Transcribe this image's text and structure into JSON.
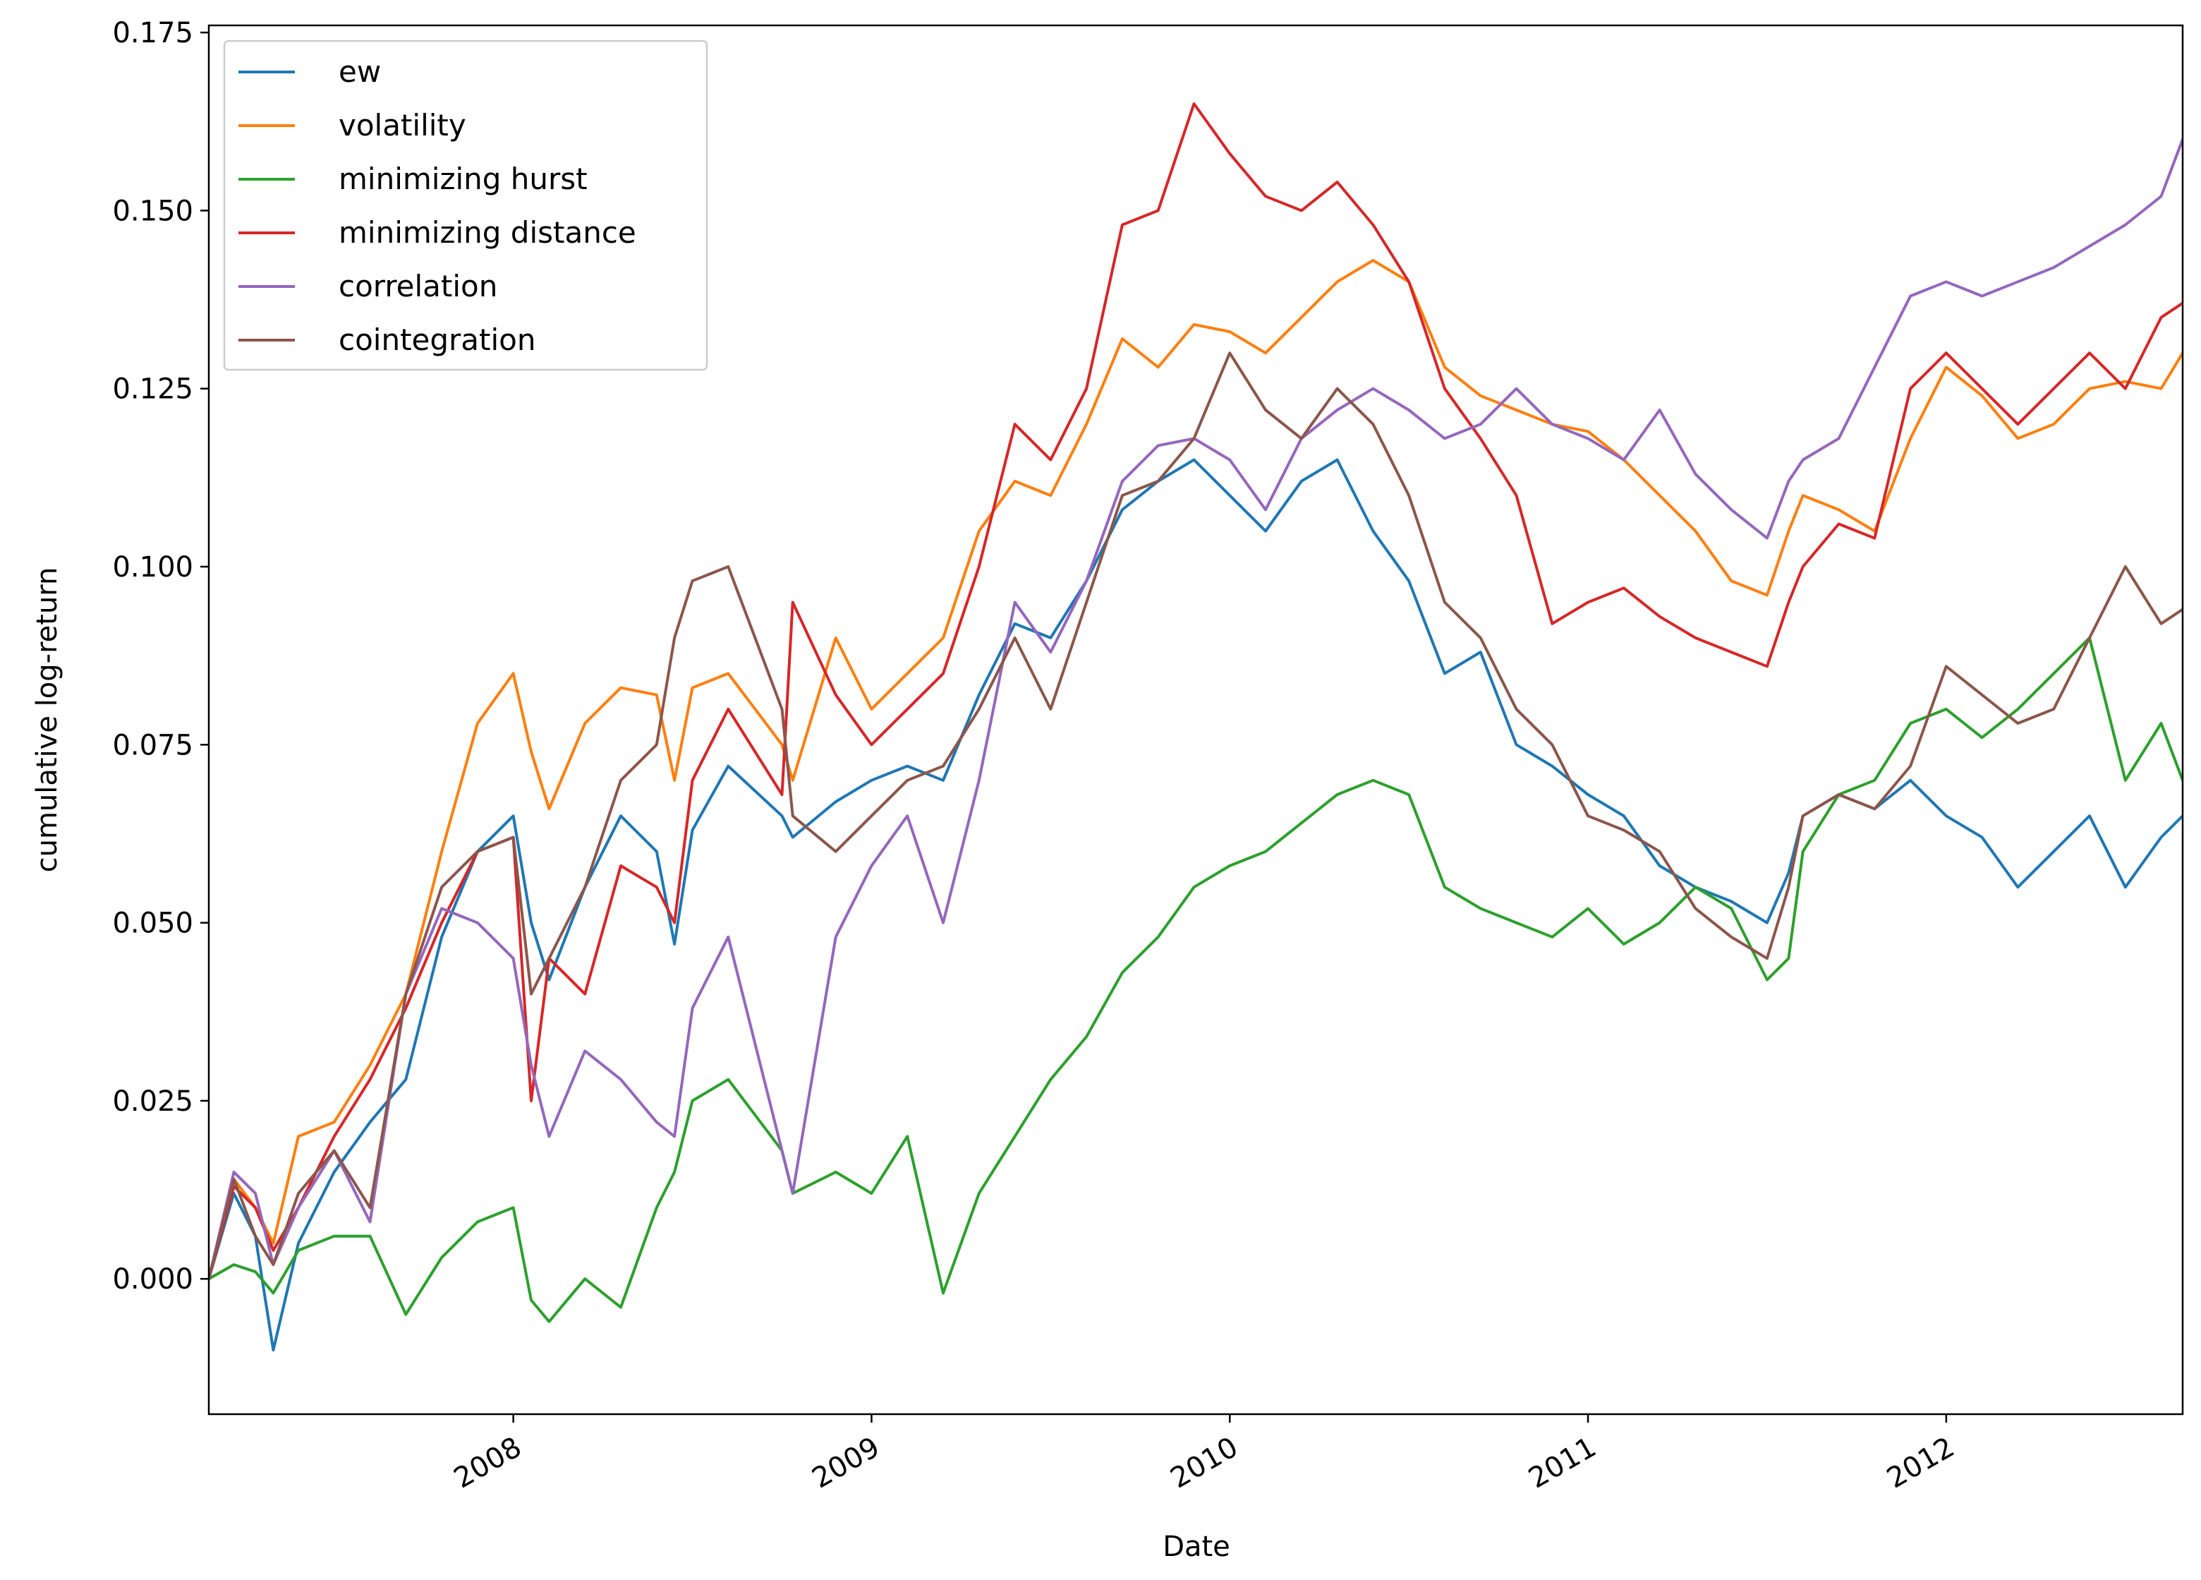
{
  "chart_data": {
    "type": "line",
    "title": "",
    "xlabel": "Date",
    "ylabel": "cumulative log-return",
    "xlim": [
      2007.15,
      2012.66
    ],
    "ylim": [
      -0.019,
      0.176
    ],
    "grid": false,
    "legend_position": "upper-left",
    "x_ticks": [
      2008,
      2009,
      2010,
      2011,
      2012
    ],
    "x_tick_labels": [
      "2008",
      "2009",
      "2010",
      "2011",
      "2012"
    ],
    "y_ticks": [
      0.0,
      0.025,
      0.05,
      0.075,
      0.1,
      0.125,
      0.15,
      0.175
    ],
    "y_tick_labels": [
      "0.000",
      "0.025",
      "0.050",
      "0.075",
      "0.100",
      "0.125",
      "0.150",
      "0.175"
    ],
    "series": [
      {
        "name": "ew",
        "color": "#1f77b4",
        "x": [
          2007.15,
          2007.22,
          2007.28,
          2007.33,
          2007.4,
          2007.5,
          2007.6,
          2007.7,
          2007.8,
          2007.9,
          2008.0,
          2008.05,
          2008.1,
          2008.2,
          2008.3,
          2008.4,
          2008.45,
          2008.5,
          2008.6,
          2008.75,
          2008.78,
          2008.9,
          2009.0,
          2009.1,
          2009.2,
          2009.3,
          2009.4,
          2009.5,
          2009.6,
          2009.7,
          2009.8,
          2009.9,
          2010.0,
          2010.1,
          2010.2,
          2010.3,
          2010.4,
          2010.5,
          2010.6,
          2010.7,
          2010.8,
          2010.9,
          2011.0,
          2011.1,
          2011.2,
          2011.3,
          2011.4,
          2011.5,
          2011.56,
          2011.6,
          2011.7,
          2011.8,
          2011.9,
          2012.0,
          2012.1,
          2012.2,
          2012.3,
          2012.4,
          2012.5,
          2012.6,
          2012.66
        ],
        "values": [
          0.0,
          0.012,
          0.006,
          -0.01,
          0.005,
          0.015,
          0.022,
          0.028,
          0.048,
          0.06,
          0.065,
          0.05,
          0.042,
          0.055,
          0.065,
          0.06,
          0.047,
          0.063,
          0.072,
          0.065,
          0.062,
          0.067,
          0.07,
          0.072,
          0.07,
          0.082,
          0.092,
          0.09,
          0.098,
          0.108,
          0.112,
          0.115,
          0.11,
          0.105,
          0.112,
          0.115,
          0.105,
          0.098,
          0.085,
          0.088,
          0.075,
          0.072,
          0.068,
          0.065,
          0.058,
          0.055,
          0.053,
          0.05,
          0.057,
          0.065,
          0.068,
          0.066,
          0.07,
          0.065,
          0.062,
          0.055,
          0.06,
          0.065,
          0.055,
          0.062,
          0.065
        ]
      },
      {
        "name": "volatility",
        "color": "#ff7f0e",
        "x": [
          2007.15,
          2007.22,
          2007.28,
          2007.33,
          2007.4,
          2007.5,
          2007.6,
          2007.7,
          2007.8,
          2007.9,
          2008.0,
          2008.05,
          2008.1,
          2008.2,
          2008.3,
          2008.4,
          2008.45,
          2008.5,
          2008.6,
          2008.75,
          2008.78,
          2008.9,
          2009.0,
          2009.1,
          2009.2,
          2009.3,
          2009.4,
          2009.5,
          2009.6,
          2009.7,
          2009.8,
          2009.9,
          2010.0,
          2010.1,
          2010.2,
          2010.3,
          2010.4,
          2010.5,
          2010.6,
          2010.7,
          2010.8,
          2010.9,
          2011.0,
          2011.1,
          2011.2,
          2011.3,
          2011.4,
          2011.5,
          2011.56,
          2011.6,
          2011.7,
          2011.8,
          2011.9,
          2012.0,
          2012.1,
          2012.2,
          2012.3,
          2012.4,
          2012.5,
          2012.6,
          2012.66
        ],
        "values": [
          0.0,
          0.014,
          0.01,
          0.005,
          0.02,
          0.022,
          0.03,
          0.04,
          0.06,
          0.078,
          0.085,
          0.074,
          0.066,
          0.078,
          0.083,
          0.082,
          0.07,
          0.083,
          0.085,
          0.075,
          0.07,
          0.09,
          0.08,
          0.085,
          0.09,
          0.105,
          0.112,
          0.11,
          0.12,
          0.132,
          0.128,
          0.134,
          0.133,
          0.13,
          0.135,
          0.14,
          0.143,
          0.14,
          0.128,
          0.124,
          0.122,
          0.12,
          0.119,
          0.115,
          0.11,
          0.105,
          0.098,
          0.096,
          0.105,
          0.11,
          0.108,
          0.105,
          0.118,
          0.128,
          0.124,
          0.118,
          0.12,
          0.125,
          0.126,
          0.125,
          0.13
        ]
      },
      {
        "name": "minimizing hurst",
        "color": "#2ca02c",
        "x": [
          2007.15,
          2007.22,
          2007.28,
          2007.33,
          2007.4,
          2007.5,
          2007.6,
          2007.7,
          2007.8,
          2007.9,
          2008.0,
          2008.05,
          2008.1,
          2008.2,
          2008.3,
          2008.4,
          2008.45,
          2008.5,
          2008.6,
          2008.75,
          2008.78,
          2008.9,
          2009.0,
          2009.1,
          2009.2,
          2009.3,
          2009.4,
          2009.5,
          2009.6,
          2009.7,
          2009.8,
          2009.9,
          2010.0,
          2010.1,
          2010.2,
          2010.3,
          2010.4,
          2010.5,
          2010.6,
          2010.7,
          2010.8,
          2010.9,
          2011.0,
          2011.1,
          2011.2,
          2011.3,
          2011.4,
          2011.5,
          2011.56,
          2011.6,
          2011.7,
          2011.8,
          2011.9,
          2012.0,
          2012.1,
          2012.2,
          2012.3,
          2012.4,
          2012.5,
          2012.6,
          2012.66
        ],
        "values": [
          0.0,
          0.002,
          0.001,
          -0.002,
          0.004,
          0.006,
          0.006,
          -0.005,
          0.003,
          0.008,
          0.01,
          -0.003,
          -0.006,
          0.0,
          -0.004,
          0.01,
          0.015,
          0.025,
          0.028,
          0.018,
          0.012,
          0.015,
          0.012,
          0.02,
          -0.002,
          0.012,
          0.02,
          0.028,
          0.034,
          0.043,
          0.048,
          0.055,
          0.058,
          0.06,
          0.064,
          0.068,
          0.07,
          0.068,
          0.055,
          0.052,
          0.05,
          0.048,
          0.052,
          0.047,
          0.05,
          0.055,
          0.052,
          0.042,
          0.045,
          0.06,
          0.068,
          0.07,
          0.078,
          0.08,
          0.076,
          0.08,
          0.085,
          0.09,
          0.07,
          0.078,
          0.07
        ]
      },
      {
        "name": "minimizing distance",
        "color": "#d62728",
        "x": [
          2007.15,
          2007.22,
          2007.28,
          2007.33,
          2007.4,
          2007.5,
          2007.6,
          2007.7,
          2007.8,
          2007.9,
          2008.0,
          2008.05,
          2008.1,
          2008.2,
          2008.3,
          2008.4,
          2008.45,
          2008.5,
          2008.6,
          2008.75,
          2008.78,
          2008.9,
          2009.0,
          2009.1,
          2009.2,
          2009.3,
          2009.4,
          2009.5,
          2009.6,
          2009.7,
          2009.8,
          2009.9,
          2010.0,
          2010.1,
          2010.2,
          2010.3,
          2010.4,
          2010.5,
          2010.6,
          2010.7,
          2010.8,
          2010.9,
          2011.0,
          2011.1,
          2011.2,
          2011.3,
          2011.4,
          2011.5,
          2011.56,
          2011.6,
          2011.7,
          2011.8,
          2011.9,
          2012.0,
          2012.1,
          2012.2,
          2012.3,
          2012.4,
          2012.5,
          2012.6,
          2012.66
        ],
        "values": [
          0.0,
          0.013,
          0.01,
          0.004,
          0.01,
          0.02,
          0.028,
          0.038,
          0.05,
          0.06,
          0.062,
          0.025,
          0.045,
          0.04,
          0.058,
          0.055,
          0.05,
          0.07,
          0.08,
          0.068,
          0.095,
          0.082,
          0.075,
          0.08,
          0.085,
          0.1,
          0.12,
          0.115,
          0.125,
          0.148,
          0.15,
          0.165,
          0.158,
          0.152,
          0.15,
          0.154,
          0.148,
          0.14,
          0.125,
          0.118,
          0.11,
          0.092,
          0.095,
          0.097,
          0.093,
          0.09,
          0.088,
          0.086,
          0.095,
          0.1,
          0.106,
          0.104,
          0.125,
          0.13,
          0.125,
          0.12,
          0.125,
          0.13,
          0.125,
          0.135,
          0.137
        ]
      },
      {
        "name": "correlation",
        "color": "#9467bd",
        "x": [
          2007.15,
          2007.22,
          2007.28,
          2007.33,
          2007.4,
          2007.5,
          2007.6,
          2007.7,
          2007.8,
          2007.9,
          2008.0,
          2008.05,
          2008.1,
          2008.2,
          2008.3,
          2008.4,
          2008.45,
          2008.5,
          2008.6,
          2008.75,
          2008.78,
          2008.9,
          2009.0,
          2009.1,
          2009.2,
          2009.3,
          2009.4,
          2009.5,
          2009.6,
          2009.7,
          2009.8,
          2009.9,
          2010.0,
          2010.1,
          2010.2,
          2010.3,
          2010.4,
          2010.5,
          2010.6,
          2010.7,
          2010.8,
          2010.9,
          2011.0,
          2011.1,
          2011.2,
          2011.3,
          2011.4,
          2011.5,
          2011.56,
          2011.6,
          2011.7,
          2011.8,
          2011.9,
          2012.0,
          2012.1,
          2012.2,
          2012.3,
          2012.4,
          2012.5,
          2012.6,
          2012.66
        ],
        "values": [
          0.0,
          0.015,
          0.012,
          0.002,
          0.01,
          0.018,
          0.008,
          0.04,
          0.052,
          0.05,
          0.045,
          0.03,
          0.02,
          0.032,
          0.028,
          0.022,
          0.02,
          0.038,
          0.048,
          0.018,
          0.012,
          0.048,
          0.058,
          0.065,
          0.05,
          0.07,
          0.095,
          0.088,
          0.098,
          0.112,
          0.117,
          0.118,
          0.115,
          0.108,
          0.118,
          0.122,
          0.125,
          0.122,
          0.118,
          0.12,
          0.125,
          0.12,
          0.118,
          0.115,
          0.122,
          0.113,
          0.108,
          0.104,
          0.112,
          0.115,
          0.118,
          0.128,
          0.138,
          0.14,
          0.138,
          0.14,
          0.142,
          0.145,
          0.148,
          0.152,
          0.16
        ]
      },
      {
        "name": "cointegration",
        "color": "#8c564b",
        "x": [
          2007.15,
          2007.22,
          2007.28,
          2007.33,
          2007.4,
          2007.5,
          2007.6,
          2007.7,
          2007.8,
          2007.9,
          2008.0,
          2008.05,
          2008.1,
          2008.2,
          2008.3,
          2008.4,
          2008.45,
          2008.5,
          2008.6,
          2008.75,
          2008.78,
          2008.9,
          2009.0,
          2009.1,
          2009.2,
          2009.3,
          2009.4,
          2009.5,
          2009.6,
          2009.7,
          2009.8,
          2009.9,
          2010.0,
          2010.1,
          2010.2,
          2010.3,
          2010.4,
          2010.5,
          2010.6,
          2010.7,
          2010.8,
          2010.9,
          2011.0,
          2011.1,
          2011.2,
          2011.3,
          2011.4,
          2011.5,
          2011.56,
          2011.6,
          2011.7,
          2011.8,
          2011.9,
          2012.0,
          2012.1,
          2012.2,
          2012.3,
          2012.4,
          2012.5,
          2012.6,
          2012.66
        ],
        "values": [
          0.0,
          0.014,
          0.006,
          0.002,
          0.012,
          0.018,
          0.01,
          0.04,
          0.055,
          0.06,
          0.062,
          0.04,
          0.045,
          0.055,
          0.07,
          0.075,
          0.09,
          0.098,
          0.1,
          0.08,
          0.065,
          0.06,
          0.065,
          0.07,
          0.072,
          0.08,
          0.09,
          0.08,
          0.095,
          0.11,
          0.112,
          0.118,
          0.13,
          0.122,
          0.118,
          0.125,
          0.12,
          0.11,
          0.095,
          0.09,
          0.08,
          0.075,
          0.065,
          0.063,
          0.06,
          0.052,
          0.048,
          0.045,
          0.055,
          0.065,
          0.068,
          0.066,
          0.072,
          0.086,
          0.082,
          0.078,
          0.08,
          0.09,
          0.1,
          0.092,
          0.094
        ]
      }
    ]
  }
}
